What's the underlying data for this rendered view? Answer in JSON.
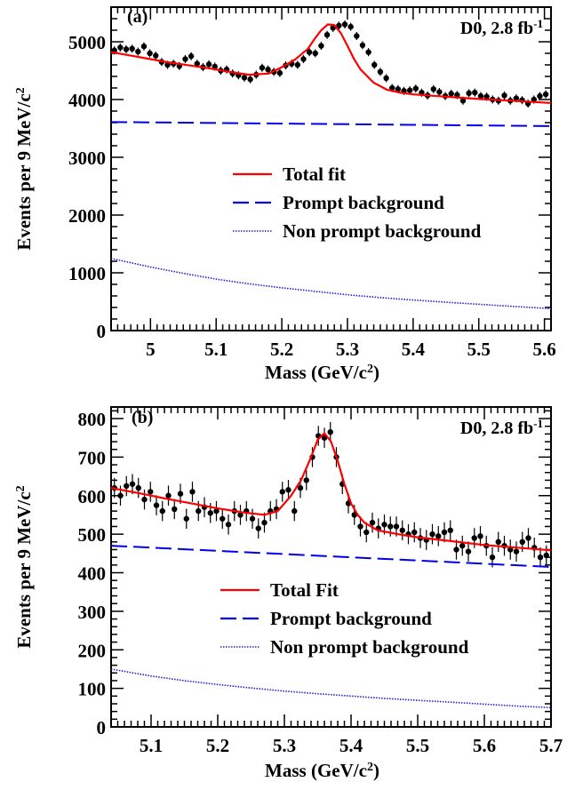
{
  "chart_data": [
    {
      "type": "scatter",
      "panel_label": "(a)",
      "annotation": "D0, 2.8 fb",
      "annotation_sup": "-1",
      "xlabel": "Mass (GeV/c",
      "xlabel_sup": "2",
      "xlabel_end": ")",
      "ylabel": "Events per 9 MeV/c",
      "ylabel_sup": "2",
      "xlim": [
        4.94,
        5.61
      ],
      "ylim": [
        0,
        5600
      ],
      "x_ticks": [
        5,
        5.1,
        5.2,
        5.3,
        5.4,
        5.5,
        5.6
      ],
      "x_tick_labels": [
        "5",
        "5.1",
        "5.2",
        "5.3",
        "5.4",
        "5.5",
        "5.6"
      ],
      "y_ticks": [
        0,
        1000,
        2000,
        3000,
        4000,
        5000
      ],
      "y_tick_labels": [
        "0",
        "1000",
        "2000",
        "3000",
        "4000",
        "5000"
      ],
      "grid": false,
      "legend_position": "center",
      "series": [
        {
          "name": "Data",
          "kind": "points",
          "color": "#000000",
          "error": 70,
          "x": [
            4.945,
            4.954,
            4.963,
            4.972,
            4.981,
            4.99,
            4.999,
            5.008,
            5.017,
            5.026,
            5.035,
            5.044,
            5.053,
            5.062,
            5.071,
            5.08,
            5.089,
            5.098,
            5.107,
            5.116,
            5.125,
            5.134,
            5.143,
            5.152,
            5.161,
            5.17,
            5.179,
            5.188,
            5.197,
            5.206,
            5.215,
            5.224,
            5.233,
            5.242,
            5.251,
            5.26,
            5.269,
            5.278,
            5.287,
            5.296,
            5.305,
            5.314,
            5.323,
            5.332,
            5.341,
            5.35,
            5.359,
            5.368,
            5.377,
            5.386,
            5.395,
            5.404,
            5.413,
            5.422,
            5.431,
            5.44,
            5.449,
            5.458,
            5.467,
            5.476,
            5.485,
            5.494,
            5.503,
            5.512,
            5.521,
            5.53,
            5.539,
            5.548,
            5.557,
            5.566,
            5.575,
            5.584,
            5.593,
            5.602
          ],
          "y": [
            4850,
            4900,
            4870,
            4880,
            4830,
            4920,
            4800,
            4760,
            4650,
            4600,
            4620,
            4580,
            4700,
            4750,
            4620,
            4560,
            4610,
            4570,
            4500,
            4520,
            4450,
            4420,
            4380,
            4350,
            4430,
            4550,
            4520,
            4480,
            4460,
            4590,
            4620,
            4600,
            4700,
            4820,
            4800,
            4930,
            5120,
            5240,
            5280,
            5300,
            5260,
            5100,
            4940,
            4820,
            4600,
            4480,
            4370,
            4200,
            4180,
            4150,
            4160,
            4190,
            4120,
            4070,
            4180,
            4130,
            4060,
            4100,
            4080,
            3980,
            4110,
            4120,
            4060,
            4050,
            4000,
            3980,
            4070,
            3980,
            4020,
            3990,
            3930,
            4000,
            4060,
            4090
          ]
        },
        {
          "name": "Total fit",
          "kind": "line",
          "color": "#ff0000",
          "dash": "solid",
          "x": [
            4.94,
            4.97,
            5.0,
            5.03,
            5.06,
            5.09,
            5.12,
            5.15,
            5.18,
            5.2,
            5.22,
            5.24,
            5.25,
            5.26,
            5.27,
            5.28,
            5.29,
            5.3,
            5.31,
            5.32,
            5.34,
            5.36,
            5.38,
            5.4,
            5.45,
            5.5,
            5.55,
            5.61
          ],
          "y": [
            4820,
            4760,
            4700,
            4640,
            4590,
            4540,
            4480,
            4430,
            4450,
            4560,
            4690,
            4880,
            5050,
            5200,
            5300,
            5290,
            5150,
            4930,
            4700,
            4520,
            4290,
            4170,
            4120,
            4090,
            4050,
            4010,
            3980,
            3940
          ]
        },
        {
          "name": "Prompt background",
          "kind": "line",
          "color": "#0000ee",
          "dash": "dashed",
          "x": [
            4.94,
            5.61
          ],
          "y": [
            3610,
            3540
          ]
        },
        {
          "name": "Non prompt background",
          "kind": "line",
          "color": "#1f1fd6",
          "dash": "dotted",
          "x": [
            4.94,
            5.0,
            5.05,
            5.1,
            5.15,
            5.2,
            5.25,
            5.3,
            5.35,
            5.4,
            5.45,
            5.5,
            5.55,
            5.61
          ],
          "y": [
            1250,
            1100,
            990,
            890,
            810,
            740,
            680,
            620,
            570,
            530,
            490,
            455,
            420,
            380
          ]
        }
      ]
    },
    {
      "type": "scatter",
      "panel_label": "(b)",
      "annotation": "D0, 2.8 fb",
      "annotation_sup": "-1",
      "xlabel": "Mass (GeV/c",
      "xlabel_sup": "2",
      "xlabel_end": ")",
      "ylabel": "Events per 9 MeV/c",
      "ylabel_sup": "2",
      "xlim": [
        5.04,
        5.7
      ],
      "ylim": [
        0,
        830
      ],
      "x_ticks": [
        5.1,
        5.2,
        5.3,
        5.4,
        5.5,
        5.6,
        5.7
      ],
      "x_tick_labels": [
        "5.1",
        "5.2",
        "5.3",
        "5.4",
        "5.5",
        "5.6",
        "5.7"
      ],
      "y_ticks": [
        0,
        100,
        200,
        300,
        400,
        500,
        600,
        700,
        800
      ],
      "y_tick_labels": [
        "0",
        "100",
        "200",
        "300",
        "400",
        "500",
        "600",
        "700",
        "800"
      ],
      "grid": false,
      "legend_position": "center",
      "series": [
        {
          "name": "Data",
          "kind": "points",
          "color": "#000000",
          "error": 26,
          "x": [
            5.045,
            5.054,
            5.063,
            5.072,
            5.081,
            5.09,
            5.099,
            5.108,
            5.117,
            5.126,
            5.135,
            5.144,
            5.153,
            5.162,
            5.171,
            5.18,
            5.189,
            5.198,
            5.207,
            5.216,
            5.225,
            5.234,
            5.243,
            5.252,
            5.261,
            5.27,
            5.279,
            5.288,
            5.297,
            5.306,
            5.315,
            5.324,
            5.333,
            5.342,
            5.351,
            5.36,
            5.369,
            5.378,
            5.387,
            5.396,
            5.405,
            5.414,
            5.423,
            5.432,
            5.441,
            5.45,
            5.459,
            5.468,
            5.477,
            5.486,
            5.495,
            5.504,
            5.513,
            5.522,
            5.531,
            5.54,
            5.549,
            5.558,
            5.567,
            5.576,
            5.585,
            5.594,
            5.603,
            5.612,
            5.621,
            5.63,
            5.639,
            5.648,
            5.657,
            5.666,
            5.675,
            5.684,
            5.693
          ],
          "y": [
            620,
            600,
            625,
            630,
            620,
            590,
            610,
            575,
            560,
            600,
            565,
            605,
            540,
            610,
            560,
            570,
            555,
            560,
            540,
            525,
            560,
            550,
            560,
            540,
            515,
            530,
            560,
            565,
            610,
            615,
            560,
            620,
            640,
            700,
            755,
            750,
            765,
            700,
            630,
            580,
            550,
            520,
            505,
            530,
            515,
            525,
            520,
            520,
            510,
            500,
            505,
            490,
            485,
            500,
            495,
            505,
            510,
            460,
            470,
            455,
            490,
            495,
            470,
            440,
            480,
            470,
            460,
            455,
            480,
            490,
            465,
            440,
            445
          ]
        },
        {
          "name": "Total Fit",
          "kind": "line",
          "color": "#ff0000",
          "dash": "solid",
          "x": [
            5.04,
            5.08,
            5.12,
            5.16,
            5.2,
            5.24,
            5.27,
            5.29,
            5.31,
            5.325,
            5.34,
            5.35,
            5.36,
            5.37,
            5.38,
            5.39,
            5.4,
            5.41,
            5.42,
            5.44,
            5.47,
            5.5,
            5.55,
            5.6,
            5.65,
            5.7
          ],
          "y": [
            620,
            607,
            593,
            580,
            567,
            556,
            550,
            560,
            600,
            640,
            700,
            745,
            762,
            740,
            690,
            630,
            580,
            550,
            530,
            510,
            500,
            492,
            482,
            472,
            465,
            458
          ]
        },
        {
          "name": "Prompt background",
          "kind": "line",
          "color": "#0000ee",
          "dash": "dashed",
          "x": [
            5.04,
            5.7
          ],
          "y": [
            470,
            415
          ]
        },
        {
          "name": "Non prompt background",
          "kind": "line",
          "color": "#1f1fd6",
          "dash": "dotted",
          "x": [
            5.04,
            5.1,
            5.15,
            5.2,
            5.25,
            5.3,
            5.35,
            5.4,
            5.45,
            5.5,
            5.55,
            5.6,
            5.65,
            5.7
          ],
          "y": [
            150,
            132,
            120,
            110,
            101,
            93,
            86,
            80,
            74,
            69,
            64,
            59,
            54,
            50
          ]
        }
      ]
    }
  ]
}
